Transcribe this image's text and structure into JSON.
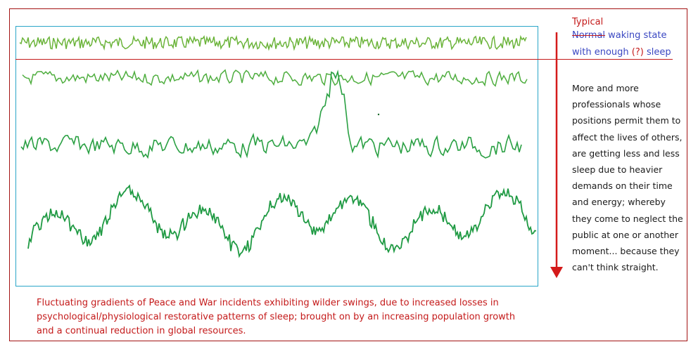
{
  "legend": {
    "typical": "Typical",
    "struck_word": "Normal",
    "line1_rest": " waking state",
    "line2_before": "with enough ",
    "line2_q": "(?)",
    "line2_after": " sleep"
  },
  "note": "More and more professionals whose positions permit them to affect the lives of others, are getting less and less sleep due to heavier demands on their time and energy; whereby they come to neglect the public at one or another moment... because they can't think straight.",
  "caption": "Fluctuating gradients of Peace and War incidents exhibiting wilder swings, due to increased losses in psychological/physiological  restorative patterns of sleep; brought on by an increasing population growth and a continual reduction in global resources.",
  "traces": [
    {
      "name": "waking-trace",
      "color": "#6bb43a"
    },
    {
      "name": "light-sleep-trace",
      "color": "#4fae3f"
    },
    {
      "name": "intermediate-sleep-trace",
      "color": "#2aa043"
    },
    {
      "name": "deep-sleep-trace",
      "color": "#1f9a43"
    }
  ],
  "colors": {
    "frame": "#a31313",
    "panel": "#2aa6c8",
    "arrow": "#d41a1a",
    "caption": "#c41a1a"
  }
}
